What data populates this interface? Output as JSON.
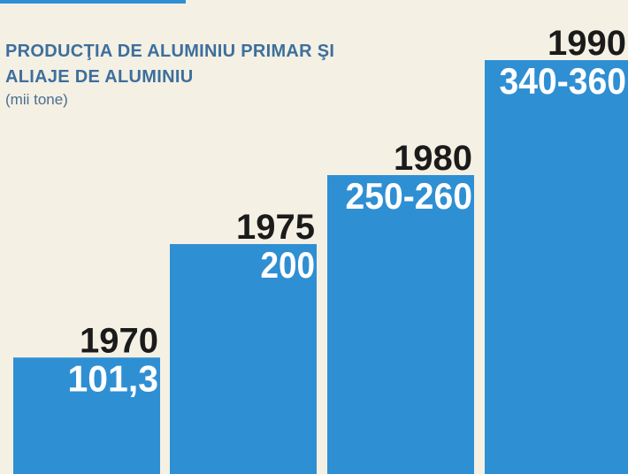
{
  "chart_data": {
    "type": "bar",
    "title": "PRODUCŢIA DE ALUMINIU PRIMAR ŞI ALIAJE DE ALUMINIU",
    "subtitle": "(mii tone)",
    "categories": [
      "1970",
      "1975",
      "1980",
      "1990"
    ],
    "values": [
      101.3,
      200,
      [
        250,
        260
      ],
      [
        340,
        360
      ]
    ],
    "value_labels": [
      "101,3",
      "200",
      "250-260",
      "340-360"
    ],
    "color": "#2f8fd3"
  }
}
